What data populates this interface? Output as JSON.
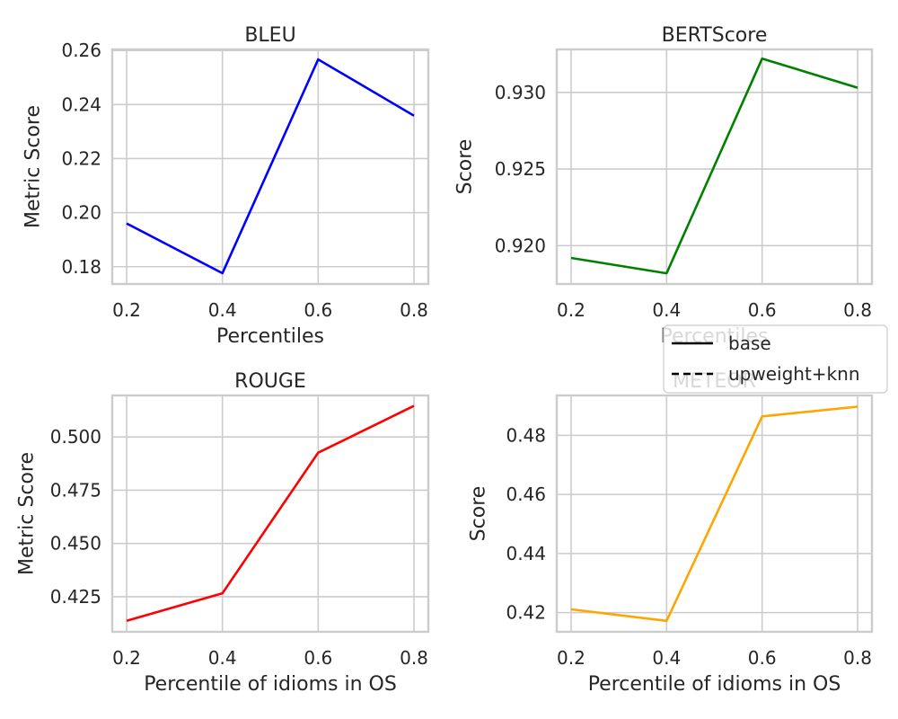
{
  "chart_data": [
    {
      "type": "line",
      "title": "BLEU",
      "xlabel": "Percentiles",
      "ylabel": "Metric Score",
      "x": [
        0.2,
        0.4,
        0.6,
        0.8
      ],
      "xticks": [
        "0.2",
        "0.4",
        "0.6",
        "0.8"
      ],
      "yticks": [
        "0.18",
        "0.20",
        "0.22",
        "0.24",
        "0.26"
      ],
      "xlim": [
        0.17,
        0.83
      ],
      "ylim": [
        0.1736,
        0.2604
      ],
      "grid": true,
      "series": [
        {
          "name": "base",
          "color": "#0000ff",
          "linestyle": "solid",
          "values": [
            0.196,
            0.1776,
            0.2567,
            0.2359
          ]
        }
      ]
    },
    {
      "type": "line",
      "title": "BERTScore",
      "xlabel": "Percentiles",
      "ylabel": "Score",
      "x": [
        0.2,
        0.4,
        0.6,
        0.8
      ],
      "xticks": [
        "0.2",
        "0.4",
        "0.6",
        "0.8"
      ],
      "yticks": [
        "0.920",
        "0.925",
        "0.930"
      ],
      "xlim": [
        0.17,
        0.83
      ],
      "ylim": [
        0.9175,
        0.9328
      ],
      "grid": true,
      "series": [
        {
          "name": "base",
          "color": "#008000",
          "linestyle": "solid",
          "values": [
            0.9192,
            0.9182,
            0.9322,
            0.9303
          ]
        }
      ]
    },
    {
      "type": "line",
      "title": "ROUGE",
      "xlabel": "Percentile of idioms in OS",
      "ylabel": "Metric Score",
      "x": [
        0.2,
        0.4,
        0.6,
        0.8
      ],
      "xticks": [
        "0.2",
        "0.4",
        "0.6",
        "0.8"
      ],
      "yticks": [
        "0.425",
        "0.450",
        "0.475",
        "0.500"
      ],
      "xlim": [
        0.17,
        0.83
      ],
      "ylim": [
        0.4085,
        0.5195
      ],
      "grid": true,
      "series": [
        {
          "name": "base",
          "color": "#ff0000",
          "linestyle": "solid",
          "values": [
            0.4137,
            0.4266,
            0.4926,
            0.5146
          ]
        }
      ]
    },
    {
      "type": "line",
      "title": "METEOR",
      "xlabel": "Percentile of idioms in OS",
      "ylabel": "Score",
      "x": [
        0.2,
        0.4,
        0.6,
        0.8
      ],
      "xticks": [
        "0.2",
        "0.4",
        "0.6",
        "0.8"
      ],
      "yticks": [
        "0.42",
        "0.44",
        "0.46",
        "0.48"
      ],
      "xlim": [
        0.17,
        0.83
      ],
      "ylim": [
        0.4135,
        0.4935
      ],
      "grid": true,
      "series": [
        {
          "name": "base",
          "color": "#ffa500",
          "linestyle": "solid",
          "values": [
            0.4211,
            0.4172,
            0.4864,
            0.4897
          ]
        }
      ]
    }
  ],
  "legend": {
    "placement": "center-right",
    "entries": [
      {
        "label": "base",
        "linestyle": "solid",
        "color": "#000000"
      },
      {
        "label": "upweight+knn",
        "linestyle": "dashed",
        "color": "#000000"
      }
    ]
  }
}
